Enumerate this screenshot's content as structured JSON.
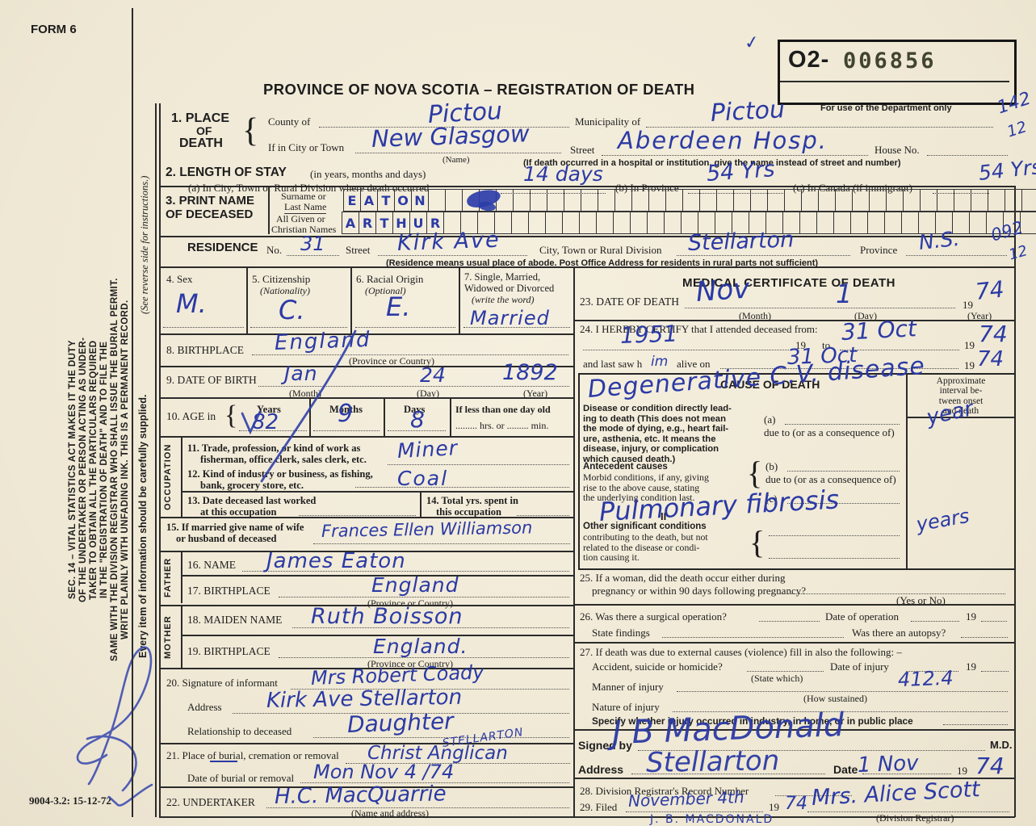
{
  "meta": {
    "form_no": "FORM 6",
    "doc_code": "9004-3.2: 15-12-72"
  },
  "stamp": {
    "prefix": "O2-",
    "number": "006856",
    "dept_note": "For use of the Department only",
    "check": "✓",
    "margin_top": "142",
    "margin_bottom": "12"
  },
  "title": "PROVINCE OF NOVA SCOTIA – REGISTRATION OF DEATH",
  "sidebar": {
    "sec14": [
      "SEC. 14 – VITAL STATISTICS ACT MAKES IT THE DUTY",
      "OF THE UNDERTAKER OR PERSON ACTING AS UNDER-",
      "TAKER TO OBTAIN ALL THE PARTICULARS REQUIRED",
      "IN THE \"REGISTRATION OF DEATH\" AND TO FILE THE",
      "SAME WITH THE DIVISION REGISTRAR WHO SHALL ISSUE THE BURIAL PERMIT.",
      "WRITE PLAINLY WITH UNFADING INK. THIS IS A PERMANENT RECORD."
    ],
    "see_reverse": "(See reverse side for instructions.)",
    "every_item": "Every item of information should be carefully supplied."
  },
  "place": {
    "no_label": "1. PLACE",
    "of": "OF",
    "death": "DEATH",
    "county_label": "County of",
    "county": "Pictou",
    "municipality_label": "Municipality of",
    "municipality": "Pictou",
    "city_label": "If in City or Town",
    "city": "New Glasgow",
    "name_note": "(Name)",
    "street_label": "Street",
    "street": "Aberdeen Hosp.",
    "house_label": "House No.",
    "hosp_note": "(If death occurred in a hospital or institution, give the name instead of street and number)"
  },
  "stay": {
    "label": "2. LENGTH OF STAY",
    "sub": "(in years, months and days)",
    "a_label": "(a) In City, Town or Rural Division where death occurred",
    "a": "14 days",
    "b_label": "(b) In Province",
    "b": "54 Yrs",
    "c_label": "(c) In Canada (if immigrant)",
    "c": "54 Yrs"
  },
  "name": {
    "label1": "3. PRINT NAME",
    "label2": "OF DECEASED",
    "surname_label1": "Surname or",
    "surname_label2": "Last Name",
    "given_label1": "All Given or",
    "given_label2": "Christian Names",
    "surname": "EATON",
    "given": "ARTHUR"
  },
  "residence": {
    "label": "RESIDENCE",
    "no_label": "No.",
    "no": "31",
    "street_label": "Street",
    "street": "Kirk Ave",
    "city_label": "City, Town or Rural Division",
    "city": "Stellarton",
    "province_label": "Province",
    "province": "N.S.",
    "margin_top": "092",
    "margin_bottom": "12",
    "note": "(Residence means usual place of abode. Post Office Address for residents in rural parts not sufficient)"
  },
  "s4": {
    "label": "4. Sex",
    "v": "M."
  },
  "s5": {
    "label": "5. Citizenship",
    "sub": "(Nationality)",
    "v": "C."
  },
  "s6": {
    "label": "6. Racial Origin",
    "sub": "(Optional)",
    "v": "E."
  },
  "s7": {
    "l1": "7. Single, Married,",
    "l2": "Widowed or Divorced",
    "sub": "(write the word)",
    "v": "Married"
  },
  "s8": {
    "label": "8. BIRTHPLACE",
    "v": "England",
    "sub": "(Province or Country)"
  },
  "s9": {
    "label": "9. DATE OF BIRTH",
    "month": "Jan",
    "day": "24",
    "year": "1892",
    "month_label": "(Month)",
    "day_label": "(Day)",
    "year_label": "(Year)"
  },
  "s10": {
    "label": "10. AGE in",
    "brace": "{",
    "years_label": "Years",
    "months_label": "Months",
    "days_label": "Days",
    "years": "82",
    "months": "9",
    "days": "8",
    "less_label": "If less than one day old",
    "less_sub": "......... hrs. or ......... min."
  },
  "occupation_label": "OCCUPATION",
  "s11": {
    "l1": "11. Trade, profession, or kind of work as",
    "l2": "fisherman, office clerk, sales clerk, etc.",
    "v": "Miner"
  },
  "s12": {
    "l1": "12. Kind of industry or business, as fishing,",
    "l2": "bank, grocery store, etc.",
    "v": "Coal"
  },
  "s13": {
    "l1": "13. Date deceased last worked",
    "l2": "at this occupation"
  },
  "s14": {
    "l1": "14. Total yrs. spent in",
    "l2": "this occupation"
  },
  "s15": {
    "l1": "15. If married give name of wife",
    "l2": "or husband of deceased",
    "v": "Frances Ellen Williamson"
  },
  "father_label": "FATHER",
  "mother_label": "MOTHER",
  "s16": {
    "label": "16. NAME",
    "v": "James   Eaton"
  },
  "s17": {
    "label": "17. BIRTHPLACE",
    "v": "England",
    "sub": "(Province or Country)"
  },
  "s18": {
    "label": "18. MAIDEN NAME",
    "v": "Ruth  Boisson"
  },
  "s19": {
    "label": "19. BIRTHPLACE",
    "v": "England.",
    "sub": "(Province or Country)"
  },
  "s20": {
    "label": "20. Signature of informant",
    "v": "Mrs Robert Coady",
    "addr_label": "Address",
    "addr": "Kirk Ave  Stellarton",
    "rel_label": "Relationship to deceased",
    "rel": "Daughter"
  },
  "s21": {
    "label": "21. Place of burial, cremation or removal",
    "v": "Christ Anglican",
    "v2": "STELLARTON",
    "date_label": "Date of burial or removal",
    "date": "Mon  Nov 4 /74"
  },
  "s22": {
    "label": "22. UNDERTAKER",
    "v": "H.C. MacQuarrie",
    "sub": "(Name and address)"
  },
  "medical": {
    "header": "MEDICAL CERTIFICATE OF DEATH",
    "s23": {
      "label": "23. DATE OF DEATH",
      "month": "Nov",
      "day": "1",
      "pre_year": "19",
      "year": "74",
      "month_label": "(Month)",
      "day_label": "(Day)",
      "year_label": "(Year)"
    },
    "s24": {
      "label": "24. I HEREBY CERTIFY that I attended deceased from:",
      "from": "1951",
      "pre19a": "19",
      "to_label": "to",
      "to": "31 Oct",
      "pre19b": "19",
      "to_year": "74",
      "last_label1": "and last saw h",
      "him": "im",
      "last_label2": "alive on",
      "last": "31 Oct",
      "pre19c": "19",
      "last_year": "74"
    },
    "cause": {
      "header": "CAUSE OF DEATH",
      "disease_lines": [
        "Disease or condition directly lead-",
        "ing to death (This does not mean",
        "the mode of dying, e.g., heart fail-",
        "ure, asthenia, etc. It means the",
        "disease, injury, or complication",
        "which caused death.)"
      ],
      "a_label": "(a)",
      "due_a": "due to (or as a consequence of)",
      "antecedent_bold": "Antecedent causes",
      "antecedent_lines": [
        "Morbid conditions, if any, giving",
        "rise to the above cause, stating",
        "the underlying condition last."
      ],
      "b_label": "(b)",
      "due_b": "due to (or as a consequence of)",
      "c_label": "(c)",
      "roman_ii": "II",
      "other_bold": "Other significant conditions",
      "other_lines": [
        "contributing to the death, but not",
        "related to the disease or condi-",
        "tion causing it."
      ],
      "interval_header": [
        "Approximate",
        "interval be-",
        "tween onset",
        "and death"
      ],
      "hw_main": "Degenerative C.V. disease",
      "hw_main_interval": "year",
      "hw_other": "Pulmonary fibrosis",
      "hw_other_interval": "years"
    },
    "s25": {
      "l1": "25. If a woman, did the death occur either during",
      "l2": "pregnancy or within 90 days following pregnancy?",
      "sub": "(Yes or No)"
    },
    "s26": {
      "l1": "26. Was there a surgical operation?",
      "op_date_label": "Date of operation",
      "pre19": "19",
      "l2": "State findings",
      "autopsy_label": "Was there an autopsy?"
    },
    "s27": {
      "l1": "27. If death was due to external causes (violence) fill in also the following: –",
      "accident_label": "Accident, suicide or homicide?",
      "state_which": "(State which)",
      "injury_date_label": "Date of injury",
      "pre19": "19",
      "manner_label": "Manner of injury",
      "how_sustained": "(How sustained)",
      "manner_code": "412.4",
      "nature_label": "Nature of injury",
      "specify_label": "Specify whether injury occurred in industry, in home, or in public place"
    },
    "signed": {
      "label": "Signed by",
      "sig": "J B MacDonald",
      "md": "M.D.",
      "addr_label": "Address",
      "addr": "Stellarton",
      "date_label": "Date",
      "date": "1 Nov",
      "pre19": "19",
      "year": "74"
    },
    "s28": {
      "label": "28. Division Registrar's Record Number"
    },
    "s29": {
      "label": "29. Filed",
      "date": "November 4th",
      "pre19": "19",
      "year": "74",
      "registrar": "Mrs. Alice Scott",
      "sub": "(Division Registrar)",
      "extra": "J. B. MACDONALD"
    }
  }
}
